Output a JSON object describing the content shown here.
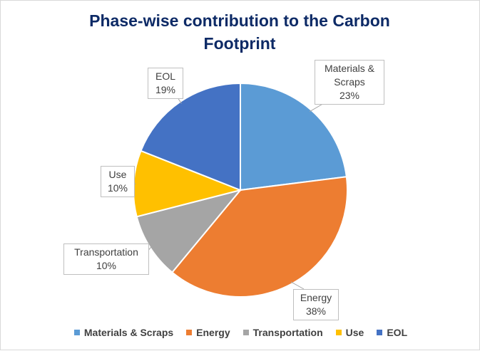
{
  "chart_data": {
    "type": "pie",
    "title": "Phase-wise contribution to the Carbon Footprint",
    "categories": [
      "Materials & Scraps",
      "Energy",
      "Transportation",
      "Use",
      "EOL"
    ],
    "values": [
      23,
      38,
      10,
      10,
      19
    ],
    "value_labels": [
      "23%",
      "38%",
      "10%",
      "10%",
      "19%"
    ],
    "colors": [
      "#5b9bd5",
      "#ed7d31",
      "#a5a5a5",
      "#ffc000",
      "#4472c4"
    ],
    "start_angle_deg": 0,
    "direction": "clockwise",
    "legend_position": "bottom"
  }
}
